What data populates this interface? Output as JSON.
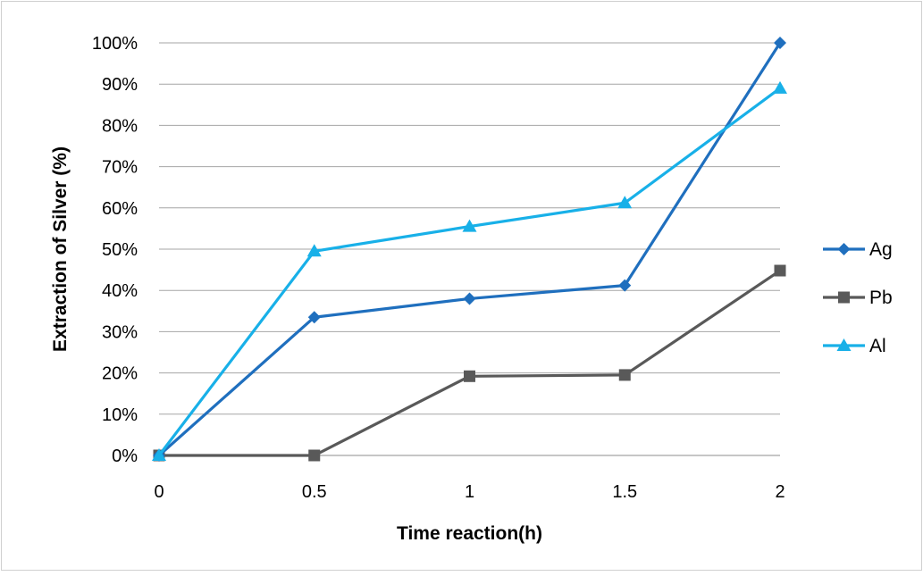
{
  "chart_data": {
    "type": "line",
    "x": [
      0,
      0.5,
      1,
      1.5,
      2
    ],
    "x_tick_labels": [
      "0",
      "0.5",
      "1",
      "1.5",
      "2"
    ],
    "xlabel": "Time reaction(h)",
    "ylabel": "Extraction of Silver (%)",
    "ylim": [
      0,
      100
    ],
    "y_tick_values": [
      0,
      10,
      20,
      30,
      40,
      50,
      60,
      70,
      80,
      90,
      100
    ],
    "y_tick_labels": [
      "0%",
      "10%",
      "20%",
      "30%",
      "40%",
      "50%",
      "60%",
      "70%",
      "80%",
      "90%",
      "100%"
    ],
    "grid": "horizontal",
    "legend_position": "right",
    "series": [
      {
        "name": "Ag",
        "values": [
          0,
          33.5,
          38,
          41.2,
          100
        ],
        "color": "#1f6fbe",
        "marker": "diamond"
      },
      {
        "name": "Pb",
        "values": [
          0,
          0,
          19.2,
          19.5,
          44.8
        ],
        "color": "#595959",
        "marker": "square"
      },
      {
        "name": "Al",
        "values": [
          0,
          49.5,
          55.5,
          61.2,
          89
        ],
        "color": "#18b0e8",
        "marker": "triangle"
      }
    ]
  }
}
